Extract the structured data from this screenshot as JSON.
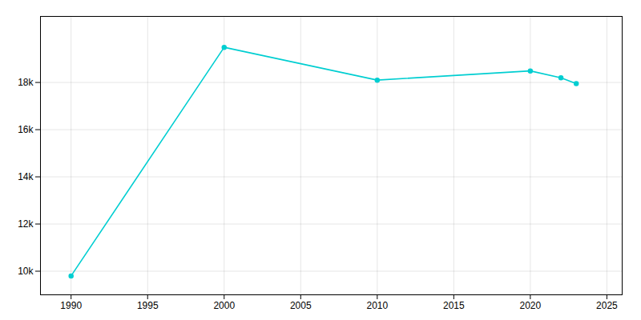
{
  "chart_data": {
    "type": "line",
    "x": [
      1990,
      2000,
      2010,
      2020,
      2022,
      2023
    ],
    "values": [
      9800,
      19490,
      18100,
      18490,
      18200,
      17950
    ],
    "color": "#00CED1",
    "marker": "circle",
    "xlim": [
      1988,
      2026
    ],
    "xticks": [
      1990,
      1995,
      2000,
      2005,
      2010,
      2015,
      2020,
      2025
    ],
    "ylim": [
      9000,
      20800
    ],
    "yticks": [
      {
        "value": 10000,
        "label": "10k"
      },
      {
        "value": 12000,
        "label": "12k"
      },
      {
        "value": 14000,
        "label": "14k"
      },
      {
        "value": 16000,
        "label": "16k"
      },
      {
        "value": 18000,
        "label": "18k"
      }
    ],
    "grid": true
  }
}
